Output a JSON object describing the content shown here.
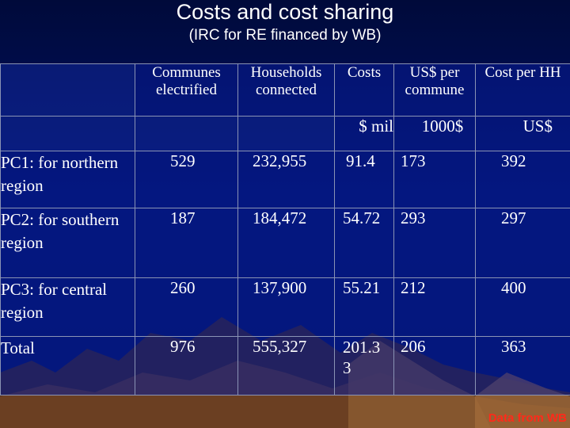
{
  "slide": {
    "title": "Costs and cost sharing",
    "subtitle": "(IRC for RE financed by WB)"
  },
  "table": {
    "headers": [
      "",
      "Communes electrified",
      "Households connected",
      "Costs",
      "US$ per commune",
      "Cost per HH"
    ],
    "units": [
      "",
      "",
      "",
      "$ mil",
      "1000$",
      "US$"
    ],
    "rows": [
      {
        "label": "PC1: for northern region",
        "communes": "529",
        "households": "232,955",
        "costs": "91.4",
        "per_commune": "173",
        "per_hh": "392"
      },
      {
        "label": "PC2: for southern region",
        "communes": "187",
        "households": "184,472",
        "costs": "54.72",
        "per_commune": "293",
        "per_hh": "297"
      },
      {
        "label": "PC3: for central region",
        "communes": "260",
        "households": "137,900",
        "costs": "55.21",
        "per_commune": "212",
        "per_hh": "400"
      },
      {
        "label": "Total",
        "communes": "976",
        "households": "555,327",
        "costs": "201.3 3",
        "per_commune": "206",
        "per_hh": "363"
      }
    ]
  },
  "source_note": "Data from WB",
  "colors": {
    "background": "#001266",
    "text": "#ffffff",
    "source_note": "#ff2a1a"
  }
}
